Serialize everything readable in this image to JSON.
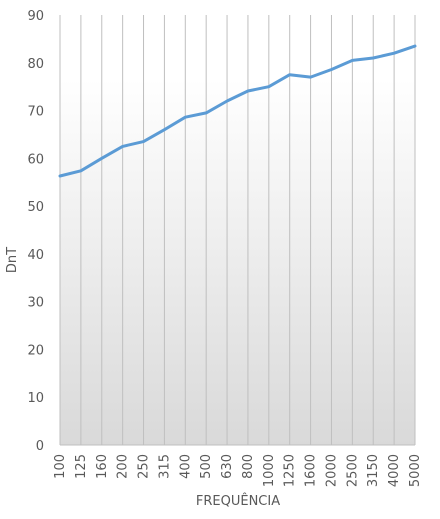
{
  "chart_data": {
    "type": "line",
    "title": "",
    "xlabel": "FREQUÊNCIA",
    "ylabel": "DnT",
    "categories": [
      "100",
      "125",
      "160",
      "200",
      "250",
      "315",
      "400",
      "500",
      "630",
      "800",
      "1000",
      "1250",
      "1600",
      "2000",
      "2500",
      "3150",
      "4000",
      "5000"
    ],
    "series": [
      {
        "values": [
          56.3,
          57.4,
          60.0,
          62.5,
          63.5,
          66.0,
          68.6,
          69.5,
          72.0,
          74.1,
          75.0,
          77.5,
          77.0,
          78.6,
          80.5,
          81.0,
          82.0,
          83.5
        ]
      }
    ],
    "ylim": [
      0,
      90
    ],
    "yticks": [
      0,
      10,
      20,
      30,
      40,
      50,
      60,
      70,
      80,
      90
    ],
    "grid": "vertical",
    "legend": "none",
    "line_color": "#5b9bd5",
    "area_gradient": [
      "#ffffff",
      "#d9d9d9"
    ],
    "gridline_color": "#bfbfbf",
    "text_color": "#595959"
  }
}
